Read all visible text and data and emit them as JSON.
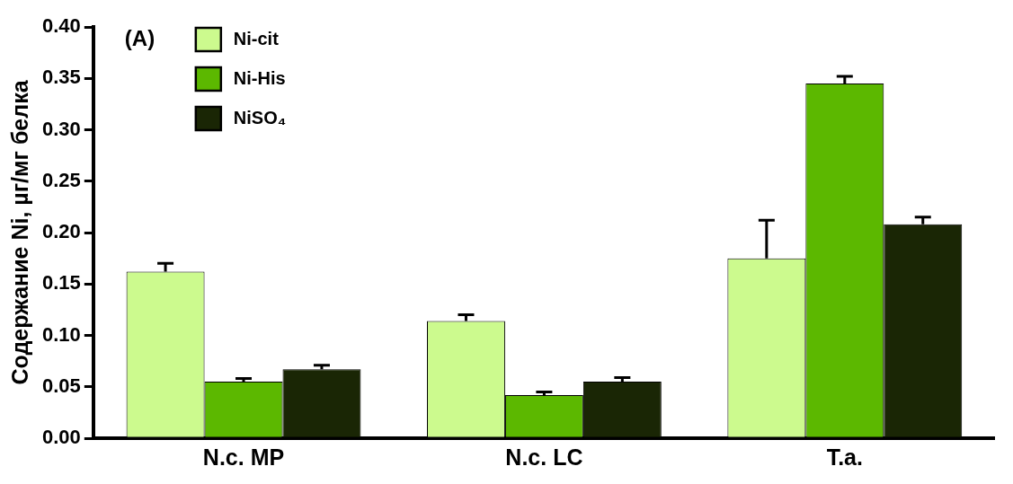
{
  "chart_data": {
    "type": "bar",
    "ylabel": "Содержание Ni, µг/мг белка",
    "annotations": [
      "(A)"
    ],
    "categories": [
      "N.c. MP",
      "N.c. LC",
      "T.a."
    ],
    "series": [
      {
        "name": "Ni-cit",
        "color": "#ccfa8e",
        "values": [
          0.162,
          0.114,
          0.175
        ],
        "errors": [
          [
            0.162,
            0.17
          ],
          [
            0.114,
            0.12
          ],
          [
            0.175,
            0.212
          ]
        ]
      },
      {
        "name": "Ni-His",
        "color": "#5cb800",
        "values": [
          0.055,
          0.042,
          0.345
        ],
        "errors": [
          [
            0.055,
            0.058
          ],
          [
            0.042,
            0.045
          ],
          [
            0.345,
            0.352
          ]
        ]
      },
      {
        "name": "NiSO₄",
        "color": "#1a2605",
        "values": [
          0.067,
          0.055,
          0.208
        ],
        "errors": [
          [
            0.067,
            0.071
          ],
          [
            0.055,
            0.059
          ],
          [
            0.208,
            0.215
          ]
        ]
      }
    ],
    "ylim": [
      0,
      0.4
    ],
    "yticks": [
      {
        "value": 0,
        "label": "0.00"
      },
      {
        "value": 0.05,
        "label": "0.05"
      },
      {
        "value": 0.1,
        "label": "0.10"
      },
      {
        "value": 0.15,
        "label": "0.15"
      },
      {
        "value": 0.2,
        "label": "0.20"
      },
      {
        "value": 0.25,
        "label": "0.25"
      },
      {
        "value": 0.3,
        "label": "0.30"
      },
      {
        "value": 0.35,
        "label": "0.35"
      },
      {
        "value": 0.4,
        "label": "0.40"
      }
    ],
    "grid": false,
    "legend": "top left"
  }
}
